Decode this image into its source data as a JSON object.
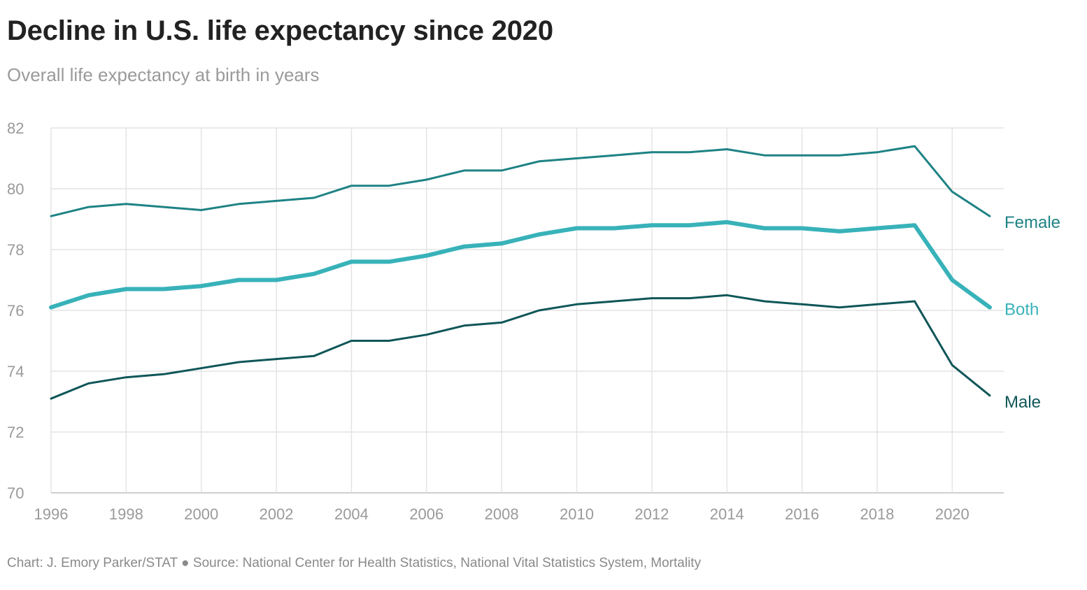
{
  "chart_data": {
    "type": "line",
    "title": "Decline in U.S. life expectancy since 2020",
    "subtitle": "Overall life expectancy at birth in years",
    "source": "Chart: J. Emory Parker/STAT ● Source: National Center for Health Statistics, National Vital Statistics System, Mortality",
    "x": [
      1996,
      1997,
      1998,
      1999,
      2000,
      2001,
      2002,
      2003,
      2004,
      2005,
      2006,
      2007,
      2008,
      2009,
      2010,
      2011,
      2012,
      2013,
      2014,
      2015,
      2016,
      2017,
      2018,
      2019,
      2020,
      2021
    ],
    "xticks": [
      "1996",
      "1998",
      "2000",
      "2002",
      "2004",
      "2006",
      "2008",
      "2010",
      "2012",
      "2014",
      "2016",
      "2018",
      "2020"
    ],
    "yticks": [
      "70",
      "72",
      "74",
      "76",
      "78",
      "80",
      "82"
    ],
    "xlim": [
      1996,
      2021
    ],
    "ylim": [
      70,
      82
    ],
    "grid": true,
    "legend": "inline labels at line ends",
    "series": [
      {
        "name": "Female",
        "color": "#1e8284",
        "values": [
          79.1,
          79.4,
          79.5,
          79.4,
          79.3,
          79.5,
          79.6,
          79.7,
          80.1,
          80.1,
          80.3,
          80.6,
          80.6,
          80.9,
          81.0,
          81.1,
          81.2,
          81.2,
          81.3,
          81.1,
          81.1,
          81.1,
          81.2,
          81.4,
          79.9,
          79.1
        ]
      },
      {
        "name": "Both",
        "color": "#38b2b9",
        "values": [
          76.1,
          76.5,
          76.7,
          76.7,
          76.8,
          77.0,
          77.0,
          77.2,
          77.6,
          77.6,
          77.8,
          78.1,
          78.2,
          78.5,
          78.7,
          78.7,
          78.8,
          78.8,
          78.9,
          78.7,
          78.7,
          78.6,
          78.7,
          78.8,
          77.0,
          76.1
        ]
      },
      {
        "name": "Male",
        "color": "#0f5658",
        "values": [
          73.1,
          73.6,
          73.8,
          73.9,
          74.1,
          74.3,
          74.4,
          74.5,
          75.0,
          75.0,
          75.2,
          75.5,
          75.6,
          76.0,
          76.2,
          76.3,
          76.4,
          76.4,
          76.5,
          76.3,
          76.2,
          76.1,
          76.2,
          76.3,
          74.2,
          73.2
        ]
      }
    ]
  }
}
